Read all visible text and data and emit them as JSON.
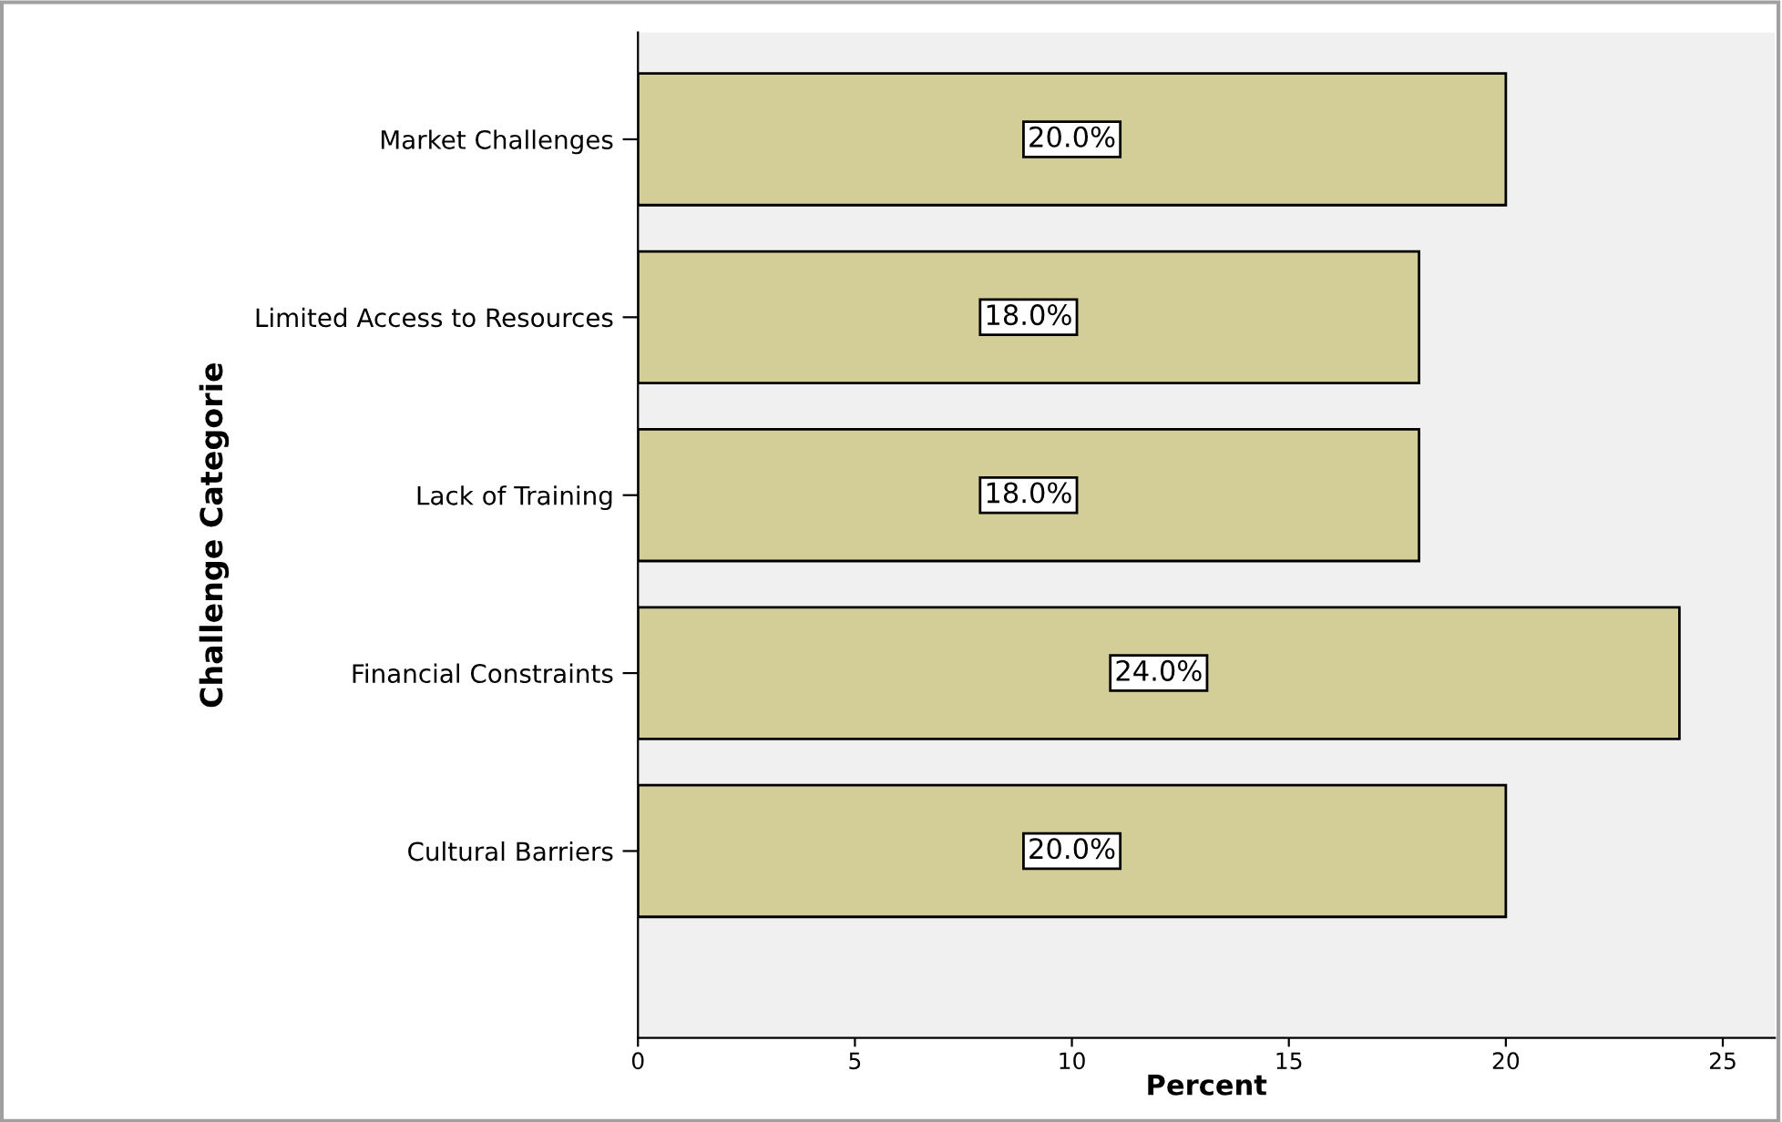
{
  "chart_data": {
    "type": "bar",
    "orientation": "horizontal",
    "xlabel": "Percent",
    "ylabel": "Challenge Categorie",
    "categories": [
      "Market Challenges",
      "Limited Access to Resources",
      "Lack of Training",
      "Financial Constraints",
      "Cultural Barriers"
    ],
    "values": [
      20,
      18,
      18,
      24,
      20
    ],
    "value_labels": [
      "20.0%",
      "18.0%",
      "18.0%",
      "24.0%",
      "20.0%"
    ],
    "color": "#d3cd98",
    "xlim": [
      0,
      26.2
    ],
    "xticks": [
      0,
      5,
      10,
      15,
      20,
      25
    ],
    "grid": false,
    "legend": false
  }
}
